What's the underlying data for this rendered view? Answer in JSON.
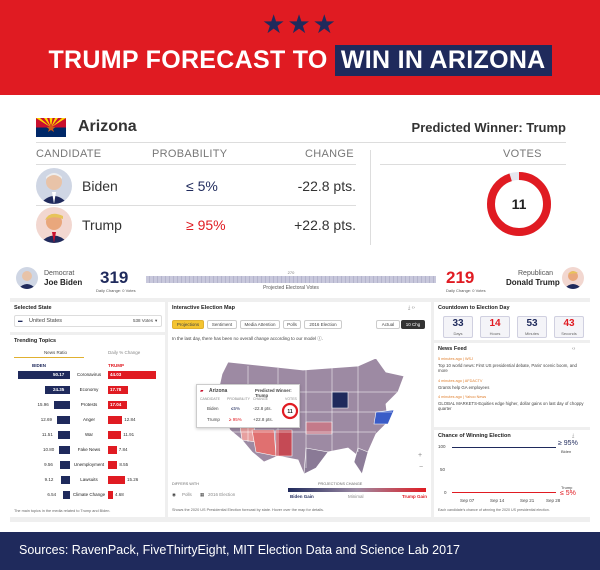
{
  "header": {
    "stars": "★★★",
    "title_part1": "TRUMP FORECAST TO ",
    "title_part2": "WIN IN ARIZONA"
  },
  "state_card": {
    "state": "Arizona",
    "predicted_winner": "Predicted Winner: Trump",
    "columns": {
      "candidate": "CANDIDATE",
      "probability": "PROBABILITY",
      "change": "CHANGE",
      "votes": "VOTES"
    },
    "candidates": [
      {
        "name": "Biden",
        "probability": "≤ 5%",
        "change": "-22.8 pts.",
        "color": "#1f2a5c"
      },
      {
        "name": "Trump",
        "probability": "≥ 95%",
        "change": "+22.8 pts.",
        "color": "#e01b22"
      }
    ],
    "votes": "11",
    "votes_fraction_trump": 0.95
  },
  "dashboard": {
    "topbar": {
      "dem_label": "Democrat",
      "dem_name": "Joe Biden",
      "dem_votes": "319",
      "dem_change": "Daily Change: 0 Votes",
      "center_label": "Projected Electoral Votes",
      "center_mark": "270",
      "rep_votes": "219",
      "rep_change": "Daily Change: 0 Votes",
      "rep_label": "Republican",
      "rep_name": "Donald Trump"
    },
    "selected_state": {
      "title": "Selected State",
      "value": "United States",
      "votes": "538 Votes"
    },
    "trending": {
      "title": "Trending Topics",
      "tab_news": "News Ratio",
      "tab_daily": "Daily % Change",
      "biden_label": "BIDEN",
      "trump_label": "TRUMP",
      "rows": [
        {
          "biden": "50.17",
          "topic": "Coronavirus",
          "trump": "44.03",
          "b": 0.95,
          "t": 0.88
        },
        {
          "biden": "24.35",
          "topic": "Economy",
          "trump": "17.78",
          "b": 0.46,
          "t": 0.36
        },
        {
          "biden": "15.96",
          "topic": "Protests",
          "trump": "17.04",
          "b": 0.3,
          "t": 0.34
        },
        {
          "biden": "12.69",
          "topic": "Anger",
          "trump": "12.84",
          "b": 0.24,
          "t": 0.26
        },
        {
          "biden": "11.51",
          "topic": "War",
          "trump": "11.91",
          "b": 0.22,
          "t": 0.24
        },
        {
          "biden": "10.80",
          "topic": "Fake News",
          "trump": "7.84",
          "b": 0.2,
          "t": 0.16
        },
        {
          "biden": "9.56",
          "topic": "Unemployment",
          "trump": "8.55",
          "b": 0.18,
          "t": 0.17
        },
        {
          "biden": "9.12",
          "topic": "Lawsuits",
          "trump": "15.26",
          "b": 0.17,
          "t": 0.31
        },
        {
          "biden": "6.54",
          "topic": "Climate Change",
          "trump": "4.68",
          "b": 0.12,
          "t": 0.09
        }
      ],
      "footnote": "The main topics in the media related to Trump and Biden."
    },
    "map_panel": {
      "title": "Interactive Election Map",
      "tabs": [
        "Projections",
        "Sentiment",
        "Media Attention",
        "Polls",
        "2016 Election"
      ],
      "toggle_actual": "Actual",
      "toggle_chg": "10 Chg",
      "note": "In the last day, there has been no overall change according to our model ⓘ.",
      "popup": {
        "state": "Arizona",
        "winner": "Predicted Winner: Trump",
        "cols": [
          "CANDIDATE",
          "PROBABILITY",
          "CHANGE",
          "VOTES"
        ],
        "rows": [
          {
            "name": "Biden",
            "prob": "≤5%",
            "change": "-22.8 pts."
          },
          {
            "name": "Trump",
            "prob": "≥ 95%",
            "change": "+22.8 pts."
          }
        ],
        "votes": "11"
      },
      "legend_differ": "DIFFERS WITH",
      "legend_items": [
        "Polls",
        "2016 Election"
      ],
      "legend_proj": "PROJECTIONS CHANGE",
      "legend_biden": "Biden Gain",
      "legend_minimal": "Minimal",
      "legend_trump": "Trump Gain",
      "footnote": "Shows the 2020 US Presidential Election forecast by state. Hover over the map for details."
    },
    "countdown": {
      "title": "Countdown to Election Day",
      "items": [
        {
          "value": "33",
          "label": "Days",
          "color": "#1f2a5c"
        },
        {
          "value": "14",
          "label": "Hours",
          "color": "#e01b22"
        },
        {
          "value": "53",
          "label": "Minutes",
          "color": "#1f2a5c"
        },
        {
          "value": "43",
          "label": "Seconds",
          "color": "#e01b22"
        }
      ]
    },
    "news_feed": {
      "title": "News Feed",
      "items": [
        {
          "meta": "5 minutes ago | WSJ",
          "text": "Top 10 world news: First US presidential debate, Paris' scenic boom, and more"
        },
        {
          "meta": "4 minutes ago | AFDACTV",
          "text": "Grants help GA employees"
        },
        {
          "meta": "4 minutes ago | Yahoo News",
          "text": "GLOBAL MARKETS-Equities edge higher, dollar gains on last day of choppy quarter"
        }
      ]
    },
    "chance_chart": {
      "title": "Chance of Winning Election",
      "y_ticks": [
        "100",
        "50",
        "0"
      ],
      "x_ticks": [
        "Sep 07",
        "Sep 14",
        "Sep 21",
        "Sep 28"
      ],
      "biden_value": "≥ 95%",
      "biden_name": "Biden",
      "trump_value": "≤ 5%",
      "trump_name": "Trump",
      "footnote": "Each candidate's chance of winning the 2020 US presidential election."
    }
  },
  "footer": {
    "sources": "Sources: RavenPack, FiveThirtyEight, MIT Election Data and Science Lab 2017"
  }
}
